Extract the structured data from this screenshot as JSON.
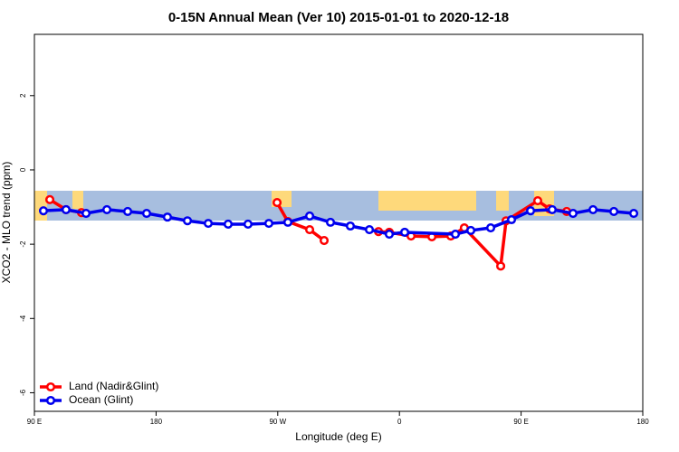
{
  "chart_data": {
    "type": "line",
    "title": "0-15N Annual Mean (Ver 10)   2015-01-01 to 2020-12-18",
    "x_label": "Longitude (deg E)",
    "y_label": "XCO2 - MLO trend (ppm)",
    "xlim": [
      90,
      540
    ],
    "ylim": [
      -6.5,
      3.65
    ],
    "xticks": [
      {
        "value": 90,
        "label": "90 E"
      },
      {
        "value": 180,
        "label": "180"
      },
      {
        "value": 270,
        "label": "90 W"
      },
      {
        "value": 360,
        "label": "0"
      },
      {
        "value": 450,
        "label": "90 E"
      },
      {
        "value": 540,
        "label": "180"
      }
    ],
    "yticks": [
      2,
      0,
      -2,
      -4,
      -6
    ],
    "legend": "bottom-left",
    "series": [
      {
        "name": "Land (Nadir&Glint)",
        "color": "#ff0000",
        "x": [
          101.4,
          113.4,
          124.8,
          null,
          269.5,
          277.5,
          293.6,
          304.3,
          null,
          344.5,
          352.5,
          368.6,
          384,
          398,
          408,
          434.9,
          438.9,
          462.3,
          471,
          483.7
        ],
        "values": [
          -0.8,
          -1.07,
          -1.15,
          null,
          -0.88,
          -1.39,
          -1.61,
          -1.9,
          null,
          -1.66,
          -1.68,
          -1.78,
          -1.8,
          -1.78,
          -1.56,
          -2.59,
          -1.37,
          -0.83,
          -1.05,
          -1.12
        ]
      },
      {
        "name": "Ocean (Glint)",
        "color": "#0000ee",
        "x": [
          96.7,
          113.4,
          128.2,
          143.6,
          159,
          173,
          188.4,
          203.2,
          218.6,
          233.3,
          248,
          263.4,
          277.5,
          293.6,
          309,
          323.7,
          337.8,
          352.5,
          363.9,
          401.4,
          412.8,
          427.5,
          442.9,
          457,
          473,
          488.4,
          503.2,
          518.6,
          533.3
        ],
        "values": [
          -1.1,
          -1.07,
          -1.17,
          -1.07,
          -1.12,
          -1.17,
          -1.27,
          -1.37,
          -1.44,
          -1.46,
          -1.46,
          -1.44,
          -1.41,
          -1.24,
          -1.41,
          -1.51,
          -1.61,
          -1.73,
          -1.68,
          -1.73,
          -1.63,
          -1.56,
          -1.34,
          -1.1,
          -1.07,
          -1.17,
          -1.07,
          -1.12,
          -1.17
        ]
      }
    ]
  }
}
